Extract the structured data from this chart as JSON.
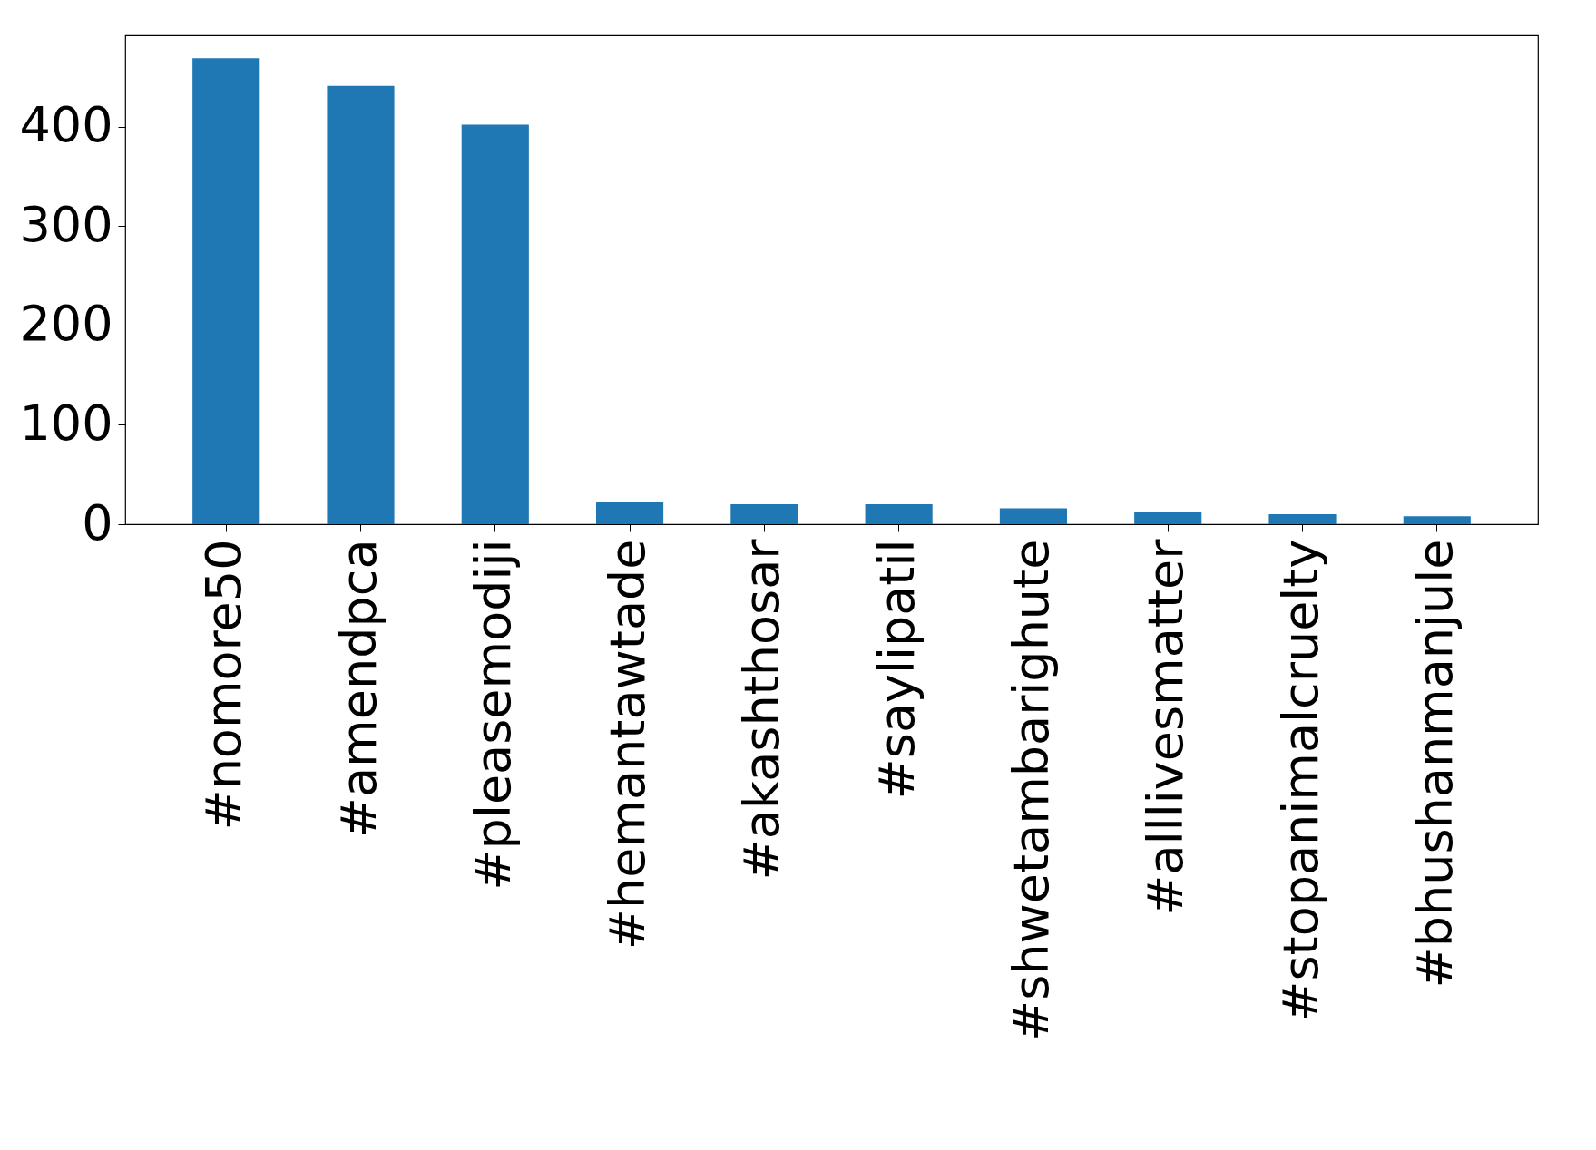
{
  "chart_data": {
    "type": "bar",
    "categories": [
      "#nomore50",
      "#amendpca",
      "#pleasemodiji",
      "#hemantawtade",
      "#akashthosar",
      "#saylipatil",
      "#shwetambarighute",
      "#alllivesmatter",
      "#stopanimalcruelty",
      "#bhushanmanjule"
    ],
    "values": [
      469,
      441,
      402,
      22,
      20,
      20,
      16,
      12,
      10,
      8
    ],
    "color": "#1f77b4",
    "ylim": [
      0,
      492
    ],
    "yticks": [
      0,
      100,
      200,
      300,
      400
    ],
    "grid": false
  }
}
